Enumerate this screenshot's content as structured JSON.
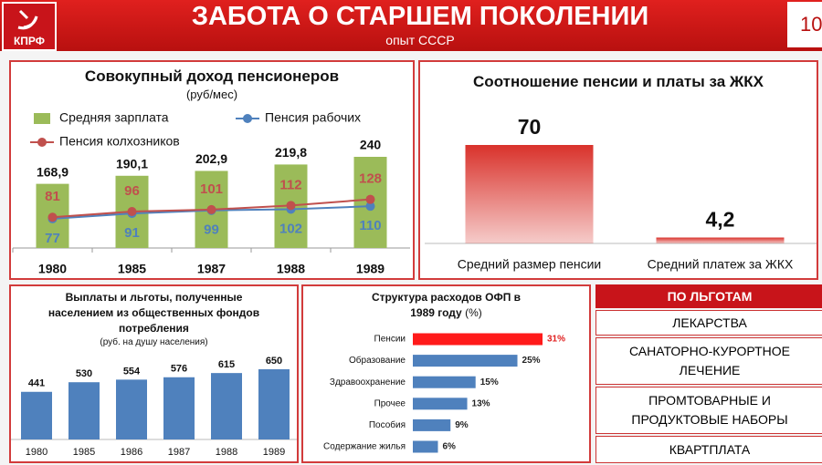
{
  "header": {
    "logo": "КПРФ",
    "title": "ЗАБОТА О СТАРШЕМ ПОКОЛЕНИИ",
    "subtitle": "опыт СССР",
    "page": "10"
  },
  "chart_data": [
    {
      "type": "combo",
      "title": "Совокупный доход пенсионеров",
      "subtitle": "(руб/мес)",
      "categories": [
        "1980",
        "1985",
        "1987",
        "1988",
        "1989"
      ],
      "series": [
        {
          "name": "Средняя зарплата",
          "type": "bar",
          "color": "#9bbb59",
          "values": [
            168.9,
            190.1,
            202.9,
            219.8,
            240
          ],
          "value_labels": [
            "168,9",
            "190,1",
            "202,9",
            "219,8",
            "240"
          ]
        },
        {
          "name": "Пенсия рабочих",
          "type": "line",
          "color": "#4f81bd",
          "values": [
            77,
            91,
            99,
            102,
            110
          ]
        },
        {
          "name": "Пенсия колхозников",
          "type": "line",
          "color": "#c0504d",
          "values": [
            81,
            96,
            101,
            112,
            128
          ]
        }
      ],
      "ylim": [
        0,
        240
      ]
    },
    {
      "type": "bar",
      "title": "Соотношение пенсии и платы за ЖКХ",
      "categories": [
        "Средний размер пенсии",
        "Средний платеж за ЖКХ"
      ],
      "values": [
        70,
        4.2
      ],
      "value_labels": [
        "70",
        "4,2"
      ],
      "color": "#d9322b",
      "ylim": [
        0,
        70
      ]
    },
    {
      "type": "bar",
      "title": "Выплаты и льготы, полученные населением из общественных фондов потребления",
      "subtitle": "(руб. на душу населения)",
      "categories": [
        "1980",
        "1985",
        "1986",
        "1987",
        "1988",
        "1989"
      ],
      "values": [
        441,
        530,
        554,
        576,
        615,
        650
      ],
      "color": "#4f81bd",
      "ylim": [
        0,
        650
      ]
    },
    {
      "type": "hbar",
      "title": "Структура расходов ОФП в 1989 году",
      "unit": "(%)",
      "categories": [
        "Пенсии",
        "Образование",
        "Здравоохранение",
        "Прочее",
        "Пособия",
        "Содержание жилья"
      ],
      "values": [
        31,
        25,
        15,
        13,
        9,
        6
      ],
      "value_labels": [
        "31%",
        "25%",
        "15%",
        "13%",
        "9%",
        "6%"
      ],
      "colors": [
        "#ff1a1a",
        "#4f81bd",
        "#4f81bd",
        "#4f81bd",
        "#4f81bd",
        "#4f81bd"
      ],
      "value_label_colors": [
        "#e02020",
        "#222222",
        "#222222",
        "#222222",
        "#222222",
        "#222222"
      ],
      "xlim": [
        0,
        31
      ]
    }
  ],
  "benefits": {
    "title": "ПО ЛЬГОТАМ",
    "items": [
      "ЛЕКАРСТВА",
      "САНАТОРНО-КУРОРТНОЕ ЛЕЧЕНИЕ",
      "ПРОМТОВАРНЫЕ И ПРОДУКТОВЫЕ НАБОРЫ",
      "КВАРТПЛАТА"
    ]
  }
}
